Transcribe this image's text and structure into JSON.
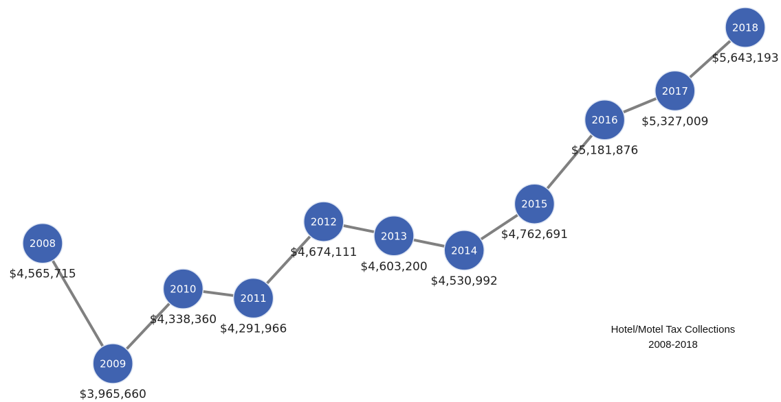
{
  "chart_data": {
    "type": "line",
    "title": "Hotel/Motel Tax Collections",
    "subtitle": "2008-2018",
    "categories": [
      "2008",
      "2009",
      "2010",
      "2011",
      "2012",
      "2013",
      "2014",
      "2015",
      "2016",
      "2017",
      "2018"
    ],
    "values": [
      4565715,
      3965660,
      4338360,
      4291966,
      4674111,
      4603200,
      4530992,
      4762691,
      5181876,
      5327009,
      5643193
    ],
    "value_labels": [
      "$4,565,715",
      "$3,965,660",
      "$4,338,360",
      "$4,291,966",
      "$4,674,111",
      "$4,603,200",
      "$4,530,992",
      "$4,762,691",
      "$5,181,876",
      "$5,327,009",
      "$5,643,193"
    ],
    "color": "#4063b0",
    "line_color": "#808080"
  }
}
